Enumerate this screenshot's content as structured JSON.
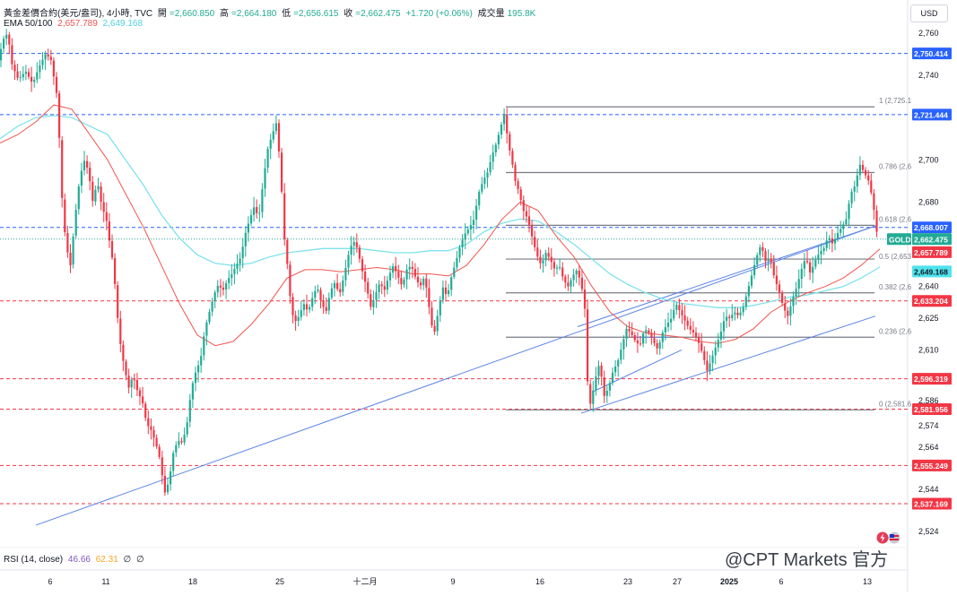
{
  "header": {
    "symbol": "黃金差價合約(美元/盎司), 4小時, TVC",
    "open_label": "開",
    "open": "=2,660.850",
    "high_label": "高",
    "high": "=2,664.180",
    "low_label": "低",
    "low": "=2,656.615",
    "close_label": "收",
    "close": "=2,662.475",
    "change": "+1.720 (+0.06%)",
    "volume_label": "成交量",
    "volume": "195.8K",
    "ema_label": "EMA 50/100",
    "ema50": "2,657.789",
    "ema100": "2,649.168",
    "rsi_label": "RSI (14, close)",
    "rsi_val1": "46.66",
    "rsi_val2": "62.31",
    "rsi_extra1": "∅",
    "rsi_extra2": "∅"
  },
  "currency_button": "USD",
  "watermark": "@CPT Markets 官方",
  "colors": {
    "up": "#22ab94",
    "down": "#f23645",
    "ema50": "#f0554f",
    "ema100": "#7fe3ec",
    "blue_line": "#2962ff",
    "red_dashed": "#f23645",
    "fib": "#787b86",
    "axis_text": "#131722"
  },
  "chart_data": {
    "type": "candlestick",
    "symbol": "GOLD",
    "timeframe": "4h",
    "ylim": [
      2520,
      2768
    ],
    "y_ticks": [
      2524,
      2544,
      2564,
      2574,
      2586,
      2610,
      2625,
      2640,
      2680,
      2700,
      2740,
      2760
    ],
    "x_ticks": [
      "6",
      "11",
      "18",
      "25",
      "十二月",
      "9",
      "16",
      "23",
      "27",
      "2025",
      "6",
      "13"
    ],
    "price_labels": [
      {
        "value": 2750.414,
        "label": "2,750.414",
        "color": "#2962ff",
        "style": "dashed"
      },
      {
        "value": 2721.444,
        "label": "2,721.444",
        "color": "#2962ff",
        "style": "dashed"
      },
      {
        "value": 2668.007,
        "label": "2,668.007",
        "color": "#2962ff",
        "style": "dashed"
      },
      {
        "value": 2633.204,
        "label": "2,633.204",
        "color": "#f23645",
        "style": "dashed"
      },
      {
        "value": 2596.319,
        "label": "2,596.319",
        "color": "#f23645",
        "style": "dashed"
      },
      {
        "value": 2581.956,
        "label": "2,581.956",
        "color": "#f23645",
        "style": "dashed"
      },
      {
        "value": 2555.249,
        "label": "2,555.249",
        "color": "#f23645",
        "style": "dashed"
      },
      {
        "value": 2537.169,
        "label": "2,537.169",
        "color": "#f23645",
        "style": "dashed"
      }
    ],
    "current": {
      "value": 2662.475,
      "label": "2,662.475",
      "tag": "GOLD"
    },
    "ema_values": [
      {
        "name": "EMA 50",
        "value": 2657.789,
        "label": "2,657.789"
      },
      {
        "name": "EMA 100",
        "value": 2649.168,
        "label": "2,649.168"
      }
    ],
    "fibonacci": [
      {
        "level": "1",
        "value": 2725.1,
        "label": "1 (2,725.1"
      },
      {
        "level": "0.786",
        "value": 2694,
        "label": "0.786 (2,6"
      },
      {
        "level": "0.618",
        "value": 2669,
        "label": "0.618 (2,6"
      },
      {
        "level": "0.5",
        "value": 2653,
        "label": "0.5 (2,653"
      },
      {
        "level": "0.382",
        "value": 2637,
        "label": "0.382 (2,6"
      },
      {
        "level": "0.236",
        "value": 2616,
        "label": "0.236 (2,6"
      },
      {
        "level": "0",
        "value": 2581.6,
        "label": "0 (2,581.6"
      }
    ],
    "price_path": [
      [
        0,
        2748
      ],
      [
        5,
        2757
      ],
      [
        10,
        2760
      ],
      [
        15,
        2745
      ],
      [
        22,
        2738
      ],
      [
        30,
        2742
      ],
      [
        38,
        2736
      ],
      [
        45,
        2744
      ],
      [
        52,
        2750
      ],
      [
        58,
        2748
      ],
      [
        62,
        2738
      ],
      [
        66,
        2728
      ],
      [
        69,
        2695
      ],
      [
        72,
        2672
      ],
      [
        76,
        2658
      ],
      [
        80,
        2650
      ],
      [
        85,
        2672
      ],
      [
        90,
        2690
      ],
      [
        95,
        2700
      ],
      [
        100,
        2695
      ],
      [
        105,
        2680
      ],
      [
        110,
        2690
      ],
      [
        115,
        2678
      ],
      [
        120,
        2672
      ],
      [
        124,
        2660
      ],
      [
        128,
        2650
      ],
      [
        132,
        2628
      ],
      [
        136,
        2612
      ],
      [
        140,
        2602
      ],
      [
        145,
        2592
      ],
      [
        150,
        2598
      ],
      [
        155,
        2590
      ],
      [
        160,
        2586
      ],
      [
        165,
        2575
      ],
      [
        170,
        2572
      ],
      [
        175,
        2566
      ],
      [
        180,
        2558
      ],
      [
        185,
        2542
      ],
      [
        190,
        2548
      ],
      [
        195,
        2562
      ],
      [
        200,
        2567
      ],
      [
        205,
        2566
      ],
      [
        210,
        2575
      ],
      [
        215,
        2592
      ],
      [
        220,
        2600
      ],
      [
        225,
        2605
      ],
      [
        230,
        2620
      ],
      [
        235,
        2628
      ],
      [
        240,
        2636
      ],
      [
        245,
        2641
      ],
      [
        250,
        2638
      ],
      [
        255,
        2643
      ],
      [
        260,
        2646
      ],
      [
        265,
        2650
      ],
      [
        270,
        2654
      ],
      [
        275,
        2665
      ],
      [
        280,
        2672
      ],
      [
        285,
        2678
      ],
      [
        290,
        2672
      ],
      [
        295,
        2690
      ],
      [
        300,
        2705
      ],
      [
        305,
        2712
      ],
      [
        310,
        2718
      ],
      [
        315,
        2690
      ],
      [
        318,
        2665
      ],
      [
        322,
        2650
      ],
      [
        326,
        2630
      ],
      [
        330,
        2623
      ],
      [
        335,
        2626
      ],
      [
        340,
        2632
      ],
      [
        345,
        2628
      ],
      [
        350,
        2635
      ],
      [
        355,
        2640
      ],
      [
        360,
        2632
      ],
      [
        365,
        2628
      ],
      [
        370,
        2638
      ],
      [
        375,
        2642
      ],
      [
        380,
        2636
      ],
      [
        385,
        2645
      ],
      [
        390,
        2655
      ],
      [
        395,
        2662
      ],
      [
        400,
        2658
      ],
      [
        405,
        2648
      ],
      [
        410,
        2640
      ],
      [
        415,
        2630
      ],
      [
        420,
        2636
      ],
      [
        425,
        2642
      ],
      [
        430,
        2638
      ],
      [
        435,
        2645
      ],
      [
        440,
        2650
      ],
      [
        445,
        2645
      ],
      [
        450,
        2640
      ],
      [
        455,
        2648
      ],
      [
        460,
        2650
      ],
      [
        465,
        2644
      ],
      [
        470,
        2640
      ],
      [
        475,
        2645
      ],
      [
        480,
        2630
      ],
      [
        485,
        2616
      ],
      [
        490,
        2628
      ],
      [
        495,
        2640
      ],
      [
        500,
        2635
      ],
      [
        505,
        2645
      ],
      [
        510,
        2652
      ],
      [
        515,
        2660
      ],
      [
        520,
        2665
      ],
      [
        525,
        2668
      ],
      [
        530,
        2672
      ],
      [
        535,
        2684
      ],
      [
        540,
        2690
      ],
      [
        545,
        2694
      ],
      [
        550,
        2702
      ],
      [
        555,
        2708
      ],
      [
        560,
        2716
      ],
      [
        564,
        2722
      ],
      [
        568,
        2708
      ],
      [
        572,
        2700
      ],
      [
        576,
        2690
      ],
      [
        580,
        2685
      ],
      [
        585,
        2676
      ],
      [
        590,
        2672
      ],
      [
        595,
        2663
      ],
      [
        600,
        2655
      ],
      [
        605,
        2650
      ],
      [
        610,
        2656
      ],
      [
        615,
        2653
      ],
      [
        620,
        2648
      ],
      [
        625,
        2650
      ],
      [
        630,
        2643
      ],
      [
        635,
        2640
      ],
      [
        640,
        2645
      ],
      [
        645,
        2648
      ],
      [
        650,
        2640
      ],
      [
        654,
        2628
      ],
      [
        657,
        2590
      ],
      [
        660,
        2584
      ],
      [
        665,
        2596
      ],
      [
        670,
        2604
      ],
      [
        675,
        2588
      ],
      [
        680,
        2592
      ],
      [
        685,
        2600
      ],
      [
        690,
        2604
      ],
      [
        695,
        2612
      ],
      [
        700,
        2620
      ],
      [
        705,
        2618
      ],
      [
        710,
        2614
      ],
      [
        715,
        2612
      ],
      [
        720,
        2620
      ],
      [
        725,
        2618
      ],
      [
        730,
        2614
      ],
      [
        735,
        2610
      ],
      [
        740,
        2618
      ],
      [
        745,
        2622
      ],
      [
        750,
        2625
      ],
      [
        755,
        2632
      ],
      [
        760,
        2628
      ],
      [
        765,
        2624
      ],
      [
        770,
        2620
      ],
      [
        775,
        2618
      ],
      [
        780,
        2614
      ],
      [
        785,
        2608
      ],
      [
        790,
        2600
      ],
      [
        795,
        2606
      ],
      [
        800,
        2612
      ],
      [
        805,
        2618
      ],
      [
        810,
        2626
      ],
      [
        815,
        2625
      ],
      [
        820,
        2628
      ],
      [
        825,
        2626
      ],
      [
        830,
        2630
      ],
      [
        835,
        2638
      ],
      [
        840,
        2646
      ],
      [
        845,
        2654
      ],
      [
        850,
        2660
      ],
      [
        855,
        2652
      ],
      [
        860,
        2654
      ],
      [
        865,
        2644
      ],
      [
        870,
        2638
      ],
      [
        875,
        2630
      ],
      [
        880,
        2626
      ],
      [
        885,
        2634
      ],
      [
        890,
        2640
      ],
      [
        895,
        2648
      ],
      [
        900,
        2654
      ],
      [
        905,
        2646
      ],
      [
        910,
        2652
      ],
      [
        915,
        2656
      ],
      [
        920,
        2658
      ],
      [
        925,
        2664
      ],
      [
        930,
        2660
      ],
      [
        935,
        2665
      ],
      [
        940,
        2668
      ],
      [
        945,
        2672
      ],
      [
        950,
        2684
      ],
      [
        955,
        2688
      ],
      [
        960,
        2698
      ],
      [
        965,
        2694
      ],
      [
        970,
        2690
      ],
      [
        975,
        2680
      ],
      [
        978,
        2668
      ],
      [
        981,
        2662
      ]
    ],
    "ema50_path": [
      [
        0,
        2708
      ],
      [
        20,
        2712
      ],
      [
        40,
        2718
      ],
      [
        60,
        2726
      ],
      [
        80,
        2724
      ],
      [
        100,
        2712
      ],
      [
        120,
        2700
      ],
      [
        140,
        2684
      ],
      [
        160,
        2668
      ],
      [
        180,
        2650
      ],
      [
        200,
        2632
      ],
      [
        220,
        2617
      ],
      [
        240,
        2612
      ],
      [
        260,
        2614
      ],
      [
        280,
        2622
      ],
      [
        300,
        2632
      ],
      [
        320,
        2644
      ],
      [
        340,
        2648
      ],
      [
        360,
        2648
      ],
      [
        380,
        2647
      ],
      [
        400,
        2648
      ],
      [
        420,
        2649
      ],
      [
        440,
        2648
      ],
      [
        460,
        2646
      ],
      [
        480,
        2646
      ],
      [
        500,
        2645
      ],
      [
        520,
        2650
      ],
      [
        540,
        2660
      ],
      [
        560,
        2672
      ],
      [
        580,
        2680
      ],
      [
        600,
        2676
      ],
      [
        620,
        2664
      ],
      [
        640,
        2654
      ],
      [
        660,
        2640
      ],
      [
        680,
        2628
      ],
      [
        700,
        2621
      ],
      [
        720,
        2618
      ],
      [
        740,
        2617
      ],
      [
        760,
        2616
      ],
      [
        780,
        2614
      ],
      [
        800,
        2613
      ],
      [
        820,
        2615
      ],
      [
        840,
        2620
      ],
      [
        860,
        2628
      ],
      [
        880,
        2633
      ],
      [
        900,
        2637
      ],
      [
        920,
        2640
      ],
      [
        940,
        2644
      ],
      [
        960,
        2650
      ],
      [
        981,
        2657.8
      ]
    ],
    "ema100_path": [
      [
        0,
        2710
      ],
      [
        20,
        2716
      ],
      [
        40,
        2720
      ],
      [
        60,
        2721
      ],
      [
        80,
        2720
      ],
      [
        100,
        2716
      ],
      [
        120,
        2712
      ],
      [
        140,
        2700
      ],
      [
        160,
        2688
      ],
      [
        180,
        2674
      ],
      [
        200,
        2663
      ],
      [
        220,
        2655
      ],
      [
        240,
        2651
      ],
      [
        260,
        2650
      ],
      [
        280,
        2651
      ],
      [
        300,
        2654
      ],
      [
        320,
        2656
      ],
      [
        340,
        2657
      ],
      [
        360,
        2658
      ],
      [
        380,
        2658
      ],
      [
        400,
        2658
      ],
      [
        420,
        2657
      ],
      [
        440,
        2656
      ],
      [
        460,
        2656
      ],
      [
        480,
        2657
      ],
      [
        500,
        2657
      ],
      [
        520,
        2660
      ],
      [
        540,
        2666
      ],
      [
        560,
        2670
      ],
      [
        580,
        2672
      ],
      [
        600,
        2671
      ],
      [
        620,
        2666
      ],
      [
        640,
        2660
      ],
      [
        660,
        2653
      ],
      [
        680,
        2646
      ],
      [
        700,
        2641
      ],
      [
        720,
        2637
      ],
      [
        740,
        2634
      ],
      [
        760,
        2632
      ],
      [
        780,
        2631
      ],
      [
        800,
        2630
      ],
      [
        820,
        2630
      ],
      [
        840,
        2631
      ],
      [
        860,
        2633
      ],
      [
        880,
        2635
      ],
      [
        900,
        2636
      ],
      [
        920,
        2638
      ],
      [
        940,
        2640
      ],
      [
        960,
        2644
      ],
      [
        981,
        2649.2
      ]
    ],
    "trendlines": [
      {
        "from": [
          40,
          2527
        ],
        "to": [
          978,
          2669
        ]
      },
      {
        "from": [
          644,
          2621
        ],
        "to": [
          978,
          2669
        ]
      },
      {
        "from": [
          648,
          2580
        ],
        "to": [
          976,
          2626
        ]
      },
      {
        "from": [
          660,
          2590
        ],
        "to": [
          760,
          2610
        ]
      },
      {
        "from": [
          705,
          2616
        ],
        "to": [
          745,
          2616
        ]
      }
    ]
  }
}
